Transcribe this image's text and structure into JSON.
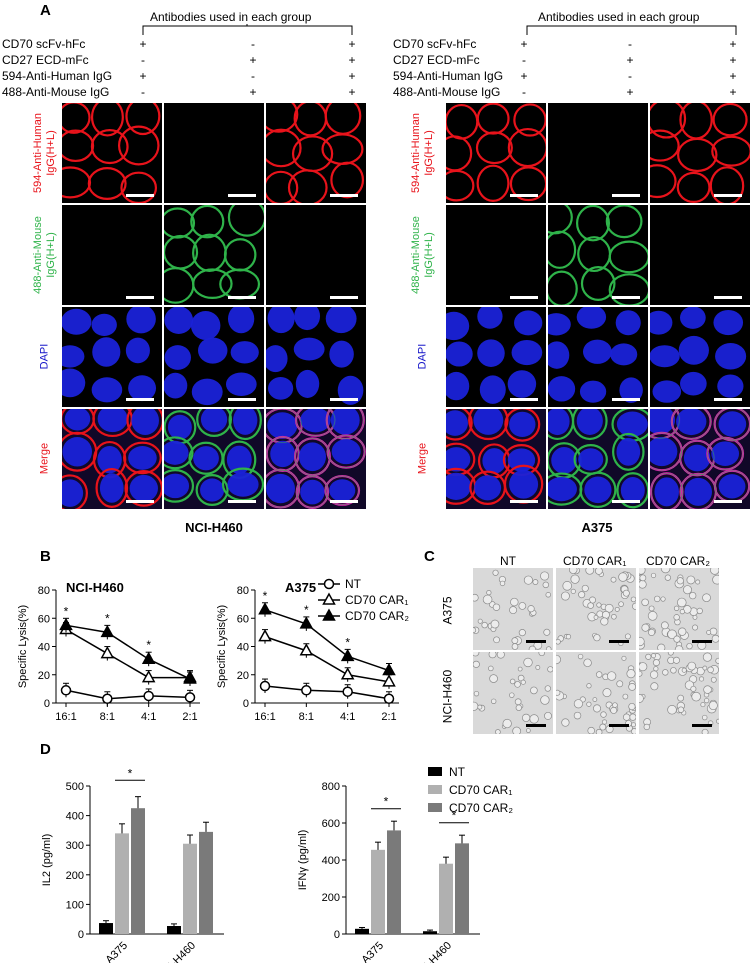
{
  "panelA": {
    "label": "A",
    "header": "Antibodies used in each group",
    "rows": [
      "CD70 scFv-hFc",
      "CD27 ECD-mFc",
      "594-Anti-Human IgG",
      "488-Anti-Mouse IgG"
    ],
    "signs": [
      [
        "+",
        "-",
        "+"
      ],
      [
        "-",
        "+",
        "+"
      ],
      [
        "+",
        "-",
        "+"
      ],
      [
        "-",
        "+",
        "+"
      ]
    ],
    "channels": [
      "594-Anti-Human\nIgG(H+L)",
      "488-Anti-Mouse\nIgG(H+L)",
      "DAPI",
      "Merge"
    ],
    "left_caption": "NCI-H460",
    "right_caption": "A375"
  },
  "panelB": {
    "label": "B",
    "legend": [
      "NT",
      "CD70 CAR₁",
      "CD70 CAR₂"
    ],
    "sig": "*"
  },
  "panelC": {
    "label": "C",
    "cols": [
      "NT",
      "CD70 CAR₁",
      "CD70 CAR₂"
    ],
    "rows": [
      "A375",
      "NCI-H460"
    ]
  },
  "panelD": {
    "label": "D",
    "legend": [
      "NT",
      "CD70 CAR₁",
      "CD70 CAR₂"
    ],
    "sig": "*"
  },
  "colors": {
    "nt": "#000000",
    "car1": "#b0b0b0",
    "car2": "#7a7a7a",
    "red": "#e8131b",
    "green": "#2fb34a",
    "blue": "#1414c8"
  },
  "chart_data": [
    {
      "type": "line",
      "title": "NCI-H460",
      "ylabel": "Specific Lysis(%)",
      "categories": [
        "16:1",
        "8:1",
        "4:1",
        "2:1"
      ],
      "ylim": [
        0,
        80
      ],
      "yticks": [
        0,
        20,
        40,
        60,
        80
      ],
      "series": [
        {
          "name": "NT",
          "values": [
            9,
            3,
            5,
            4
          ]
        },
        {
          "name": "CD70 CAR₁",
          "values": [
            52,
            35,
            18,
            18
          ]
        },
        {
          "name": "CD70 CAR₂",
          "values": [
            55,
            50,
            31,
            17
          ]
        }
      ]
    },
    {
      "type": "line",
      "title": "A375",
      "ylabel": "Specific Lysis(%)",
      "categories": [
        "16:1",
        "8:1",
        "4:1",
        "2:1"
      ],
      "ylim": [
        0,
        80
      ],
      "yticks": [
        0,
        20,
        40,
        60,
        80
      ],
      "series": [
        {
          "name": "NT",
          "values": [
            12,
            9,
            8,
            3
          ]
        },
        {
          "name": "CD70 CAR₁",
          "values": [
            47,
            37,
            20,
            15
          ]
        },
        {
          "name": "CD70 CAR₂",
          "values": [
            66,
            56,
            33,
            23
          ]
        }
      ]
    },
    {
      "type": "bar",
      "ylabel": "IL2 (pg/ml)",
      "categories": [
        "A375",
        "NCI-H460"
      ],
      "ylim": [
        0,
        500
      ],
      "yticks": [
        0,
        100,
        200,
        300,
        400,
        500
      ],
      "series": [
        {
          "name": "NT",
          "values": [
            37,
            27
          ]
        },
        {
          "name": "CD70 CAR₁",
          "values": [
            340,
            305
          ]
        },
        {
          "name": "CD70 CAR₂",
          "values": [
            425,
            345
          ]
        }
      ]
    },
    {
      "type": "bar",
      "ylabel": "IFNγ (pg/ml)",
      "categories": [
        "A375",
        "NCI-H460"
      ],
      "ylim": [
        0,
        800
      ],
      "yticks": [
        0,
        200,
        400,
        600,
        800
      ],
      "series": [
        {
          "name": "NT",
          "values": [
            28,
            15
          ]
        },
        {
          "name": "CD70 CAR₁",
          "values": [
            455,
            380
          ]
        },
        {
          "name": "CD70 CAR₂",
          "values": [
            560,
            490
          ]
        }
      ]
    }
  ]
}
